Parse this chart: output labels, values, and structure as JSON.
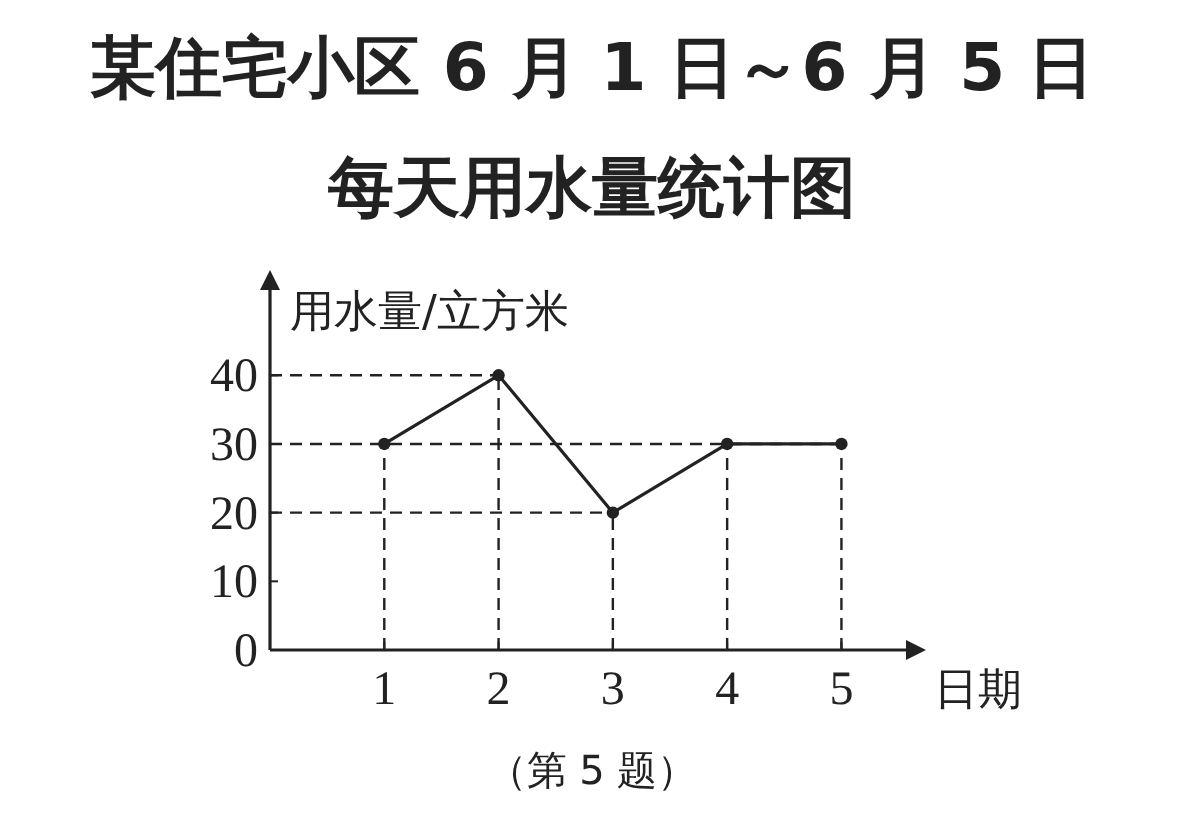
{
  "chart_data": {
    "type": "line",
    "title": "某住宅小区 6 月 1 日～6 月 5 日",
    "subtitle": "每天用水量统计图",
    "xlabel": "日期",
    "ylabel": "用水量/立方米",
    "x": [
      1,
      2,
      3,
      4,
      5
    ],
    "series": [
      {
        "color": "#222222",
        "values": [
          30,
          40,
          20,
          30,
          30
        ]
      }
    ],
    "xlim": [
      0,
      5.6
    ],
    "xticks": [
      1,
      2,
      3,
      4,
      5
    ],
    "ylim": [
      0,
      53
    ],
    "yticks": [
      0,
      10,
      20,
      30,
      40
    ],
    "marker": "circle",
    "line_style": "solid",
    "ref_lines": [
      {
        "axis": "y",
        "value": 40,
        "line_style": "dashed"
      },
      {
        "axis": "y",
        "value": 30,
        "line_style": "dashed"
      },
      {
        "axis": "y",
        "value": 20,
        "line_style": "dashed"
      },
      {
        "axis": "x",
        "value": 1,
        "line_style": "dashed"
      },
      {
        "axis": "x",
        "value": 2,
        "line_style": "dashed"
      },
      {
        "axis": "x",
        "value": 3,
        "line_style": "dashed"
      },
      {
        "axis": "x",
        "value": 4,
        "line_style": "dashed"
      },
      {
        "axis": "x",
        "value": 5,
        "line_style": "dashed"
      }
    ],
    "annotations": [
      "（第 5 题）"
    ]
  }
}
